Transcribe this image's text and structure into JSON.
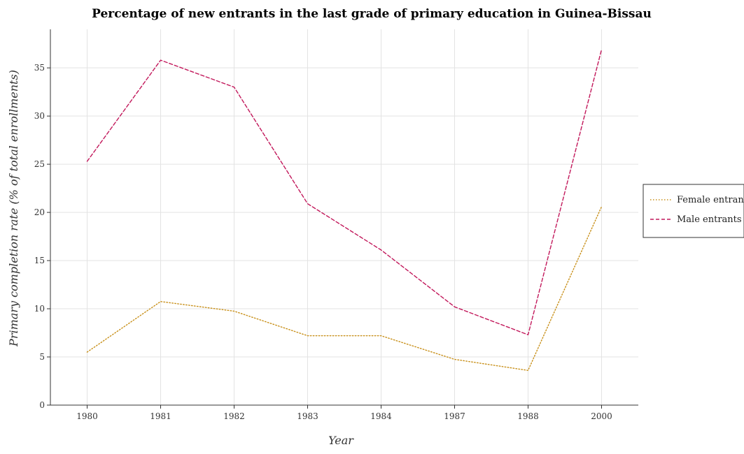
{
  "chart_data": {
    "type": "line",
    "title": "Percentage of new entrants in the last grade of primary education in Guinea-Bissau",
    "xlabel": "Year",
    "ylabel": "Primary completion rate (% of total enrollments)",
    "categories": [
      "1980",
      "1981",
      "1982",
      "1983",
      "1984",
      "1987",
      "1988",
      "2000"
    ],
    "ylim": [
      0,
      39
    ],
    "yticks": [
      0,
      5,
      10,
      15,
      20,
      25,
      30,
      35
    ],
    "grid": true,
    "legend_position": "right",
    "series": [
      {
        "name": "Female entrants",
        "color": "#c8901a",
        "dash": "dotted",
        "values": [
          5.5,
          10.75,
          9.75,
          7.2,
          7.2,
          4.75,
          3.6,
          20.6
        ]
      },
      {
        "name": "Male entrants",
        "color": "#c2185b",
        "dash": "dashed",
        "values": [
          25.3,
          35.8,
          33.0,
          20.9,
          16.1,
          10.2,
          7.3,
          36.9
        ]
      }
    ]
  }
}
